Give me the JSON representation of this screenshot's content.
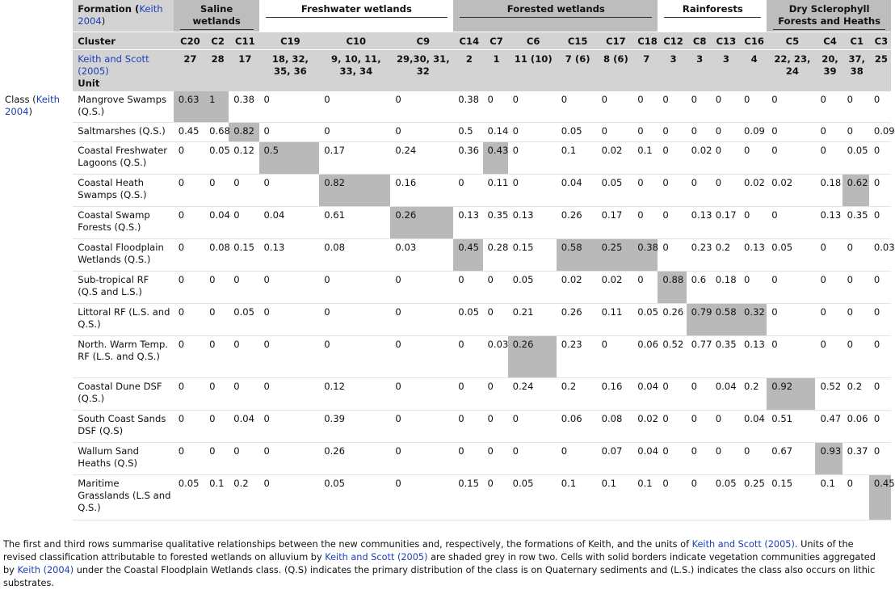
{
  "formation_label": "Formation (",
  "formation_link": "Keith 2004",
  "formation_close": ")",
  "formations": [
    {
      "name": "Saline wetlands",
      "span": 3,
      "shaded": true
    },
    {
      "name": "Freshwater wetlands",
      "span": 3,
      "shaded": false
    },
    {
      "name": "Forested wetlands",
      "span": 6,
      "shaded": true
    },
    {
      "name": "Rainforests",
      "span": 4,
      "shaded": false
    },
    {
      "name": "Dry Sclerophyll Forests and Heaths",
      "span": 4,
      "shaded": true
    }
  ],
  "cluster_label": "Cluster",
  "clusters": [
    "C20",
    "C2",
    "C11",
    "C19",
    "C10",
    "C9",
    "C14",
    "C7",
    "C6",
    "C15",
    "C17",
    "C18",
    "C12",
    "C8",
    "C13",
    "C16",
    "C5",
    "C4",
    "C1",
    "C3"
  ],
  "keith_scott_label": "Keith and Scott (2005)",
  "unit_label": "Unit",
  "units": [
    "27",
    "28",
    "17",
    "18, 32, 35, 36",
    "9, 10, 11, 33, 34",
    "29,30, 31, 32",
    "2",
    "1",
    "11 (10)",
    "7 (6)",
    "8 (6)",
    "7",
    "3",
    "3",
    "3",
    "4",
    "22, 23, 24",
    "20, 39",
    "37, 38",
    "25"
  ],
  "class_label": "Class (",
  "class_link": "Keith 2004",
  "class_close": ")",
  "rows": [
    {
      "name": "Mangrove Swamps (Q.S.)",
      "values": [
        "0.63",
        "1",
        "0.38",
        "0",
        "0",
        "0",
        "0.38",
        "0",
        "0",
        "0",
        "0",
        "0",
        "0",
        "0",
        "0",
        "0",
        "0",
        "0",
        "0",
        "0"
      ]
    },
    {
      "name": "Saltmarshes (Q.S.)",
      "values": [
        "0.45",
        "0.68",
        "0.82",
        "0",
        "0",
        "0",
        "0.5",
        "0.14",
        "0",
        "0.05",
        "0",
        "0",
        "0",
        "0",
        "0",
        "0.09",
        "0",
        "0",
        "0",
        "0.09"
      ]
    },
    {
      "name": "Coastal Freshwater Lagoons (Q.S.)",
      "values": [
        "0",
        "0.05",
        "0.12",
        "0.5",
        "0.17",
        "0.24",
        "0.36",
        "0.43",
        "0",
        "0.1",
        "0.02",
        "0.1",
        "0",
        "0.02",
        "0",
        "0",
        "0",
        "0",
        "0.05",
        "0"
      ]
    },
    {
      "name": "Coastal Heath Swamps (Q.S.)",
      "values": [
        "0",
        "0",
        "0",
        "0",
        "0.82",
        "0.16",
        "0",
        "0.11",
        "0",
        "0.04",
        "0.05",
        "0",
        "0",
        "0",
        "0",
        "0.02",
        "0.02",
        "0.18",
        "0.62",
        "0"
      ]
    },
    {
      "name": "Coastal Swamp Forests (Q.S.)",
      "values": [
        "0",
        "0.04",
        "0",
        "0.04",
        "0.61",
        "0.26",
        "0.13",
        "0.35",
        "0.13",
        "0.26",
        "0.17",
        "0",
        "0",
        "0.13",
        "0.17",
        "0",
        "0",
        "0.13",
        "0.35",
        "0"
      ]
    },
    {
      "name": "Coastal Floodplain Wetlands (Q.S.)",
      "values": [
        "0",
        "0.08",
        "0.15",
        "0.13",
        "0.08",
        "0.03",
        "0.45",
        "0.28",
        "0.15",
        "0.58",
        "0.25",
        "0.38",
        "0",
        "0.23",
        "0.2",
        "0.13",
        "0.05",
        "0",
        "0",
        "0.03"
      ]
    },
    {
      "name": "Sub-tropical RF (Q.S and L.S.)",
      "values": [
        "0",
        "0",
        "0",
        "0",
        "0",
        "0",
        "0",
        "0",
        "0.05",
        "0.02",
        "0.02",
        "0",
        "0.88",
        "0.6",
        "0.18",
        "0",
        "0",
        "0",
        "0",
        "0"
      ]
    },
    {
      "name": "Littoral RF (L.S. and Q.S.)",
      "values": [
        "0",
        "0",
        "0.05",
        "0",
        "0",
        "0",
        "0.05",
        "0",
        "0.21",
        "0.26",
        "0.11",
        "0.05",
        "0.26",
        "0.79",
        "0.58",
        "0.32",
        "0",
        "0",
        "0",
        "0"
      ]
    },
    {
      "name": "North. Warm Temp. RF (L.S. and Q.S.)",
      "values": [
        "0",
        "0",
        "0",
        "0",
        "0",
        "0",
        "0",
        "0.03",
        "0.26",
        "0.23",
        "0",
        "0.06",
        "0.52",
        "0.77",
        "0.35",
        "0.13",
        "0",
        "0",
        "0",
        "0"
      ]
    },
    {
      "name": "Coastal Dune DSF (Q.S.)",
      "values": [
        "0",
        "0",
        "0",
        "0",
        "0.12",
        "0",
        "0",
        "0",
        "0.24",
        "0.2",
        "0.16",
        "0.04",
        "0",
        "0",
        "0.04",
        "0.2",
        "0.92",
        "0.52",
        "0.2",
        "0"
      ]
    },
    {
      "name": "South Coast Sands DSF (Q.S)",
      "values": [
        "0",
        "0",
        "0.04",
        "0",
        "0.39",
        "0",
        "0",
        "0",
        "0",
        "0.06",
        "0.08",
        "0.02",
        "0",
        "0",
        "0",
        "0.04",
        "0.51",
        "0.47",
        "0.06",
        "0"
      ]
    },
    {
      "name": "Wallum Sand Heaths (Q.S)",
      "values": [
        "0",
        "0",
        "0",
        "0",
        "0.26",
        "0",
        "0",
        "0",
        "0",
        "0",
        "0.07",
        "0.04",
        "0",
        "0",
        "0",
        "0",
        "0.67",
        "0.93",
        "0.37",
        "0"
      ]
    },
    {
      "name": "Maritime Grasslands (L.S and Q.S.)",
      "values": [
        "0.05",
        "0.1",
        "0.2",
        "0",
        "0.05",
        "0",
        "0.15",
        "0",
        "0.05",
        "0.1",
        "0.1",
        "0.1",
        "0",
        "0",
        "0.05",
        "0.25",
        "0.15",
        "0.1",
        "0",
        "0.45"
      ]
    }
  ],
  "footnote": [
    {
      "t": "The first and third rows summarise qualitative relationships between the new communities and, respectively, the formations of Keith, and the units of ",
      "link": false
    },
    {
      "t": "Keith and Scott (2005)",
      "link": true
    },
    {
      "t": ". Units of the revised classification attributable to forested wetlands on alluvium by ",
      "link": false
    },
    {
      "t": "Keith and Scott (2005)",
      "link": true
    },
    {
      "t": " are shaded grey in row two. Cells with solid borders indicate vegetation communities aggregated by ",
      "link": false
    },
    {
      "t": "Keith (2004)",
      "link": true
    },
    {
      "t": " under the Coastal Floodplain Wetlands class. (Q.S) indicates the primary distribution of the class is on Quaternary sediments and (L.S.) indicates the class also occurs on lithic substrates.",
      "link": false
    }
  ],
  "colors": {
    "link": "#1a3fb8",
    "header_bg": "#d3d3d3",
    "shade": "#b9b9b9"
  }
}
